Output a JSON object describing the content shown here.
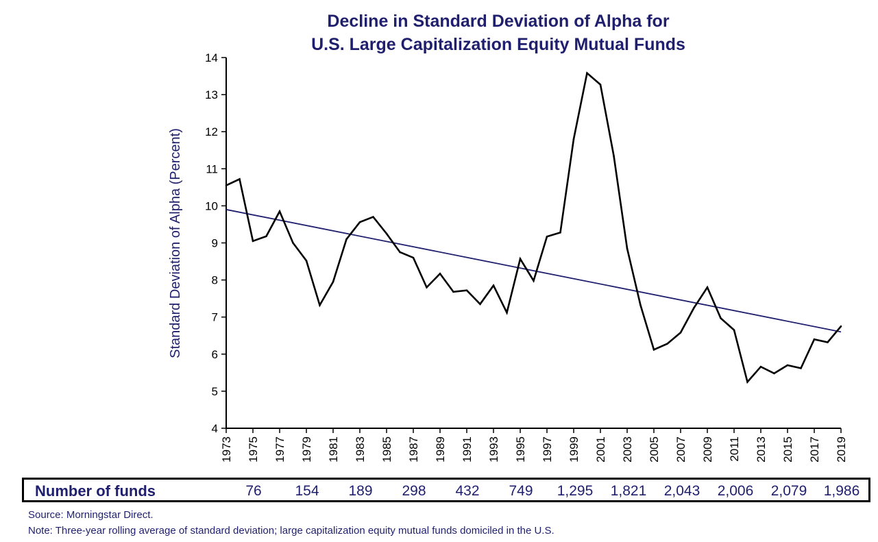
{
  "chart_data": {
    "type": "line",
    "title_lines": [
      "Decline in Standard Deviation of Alpha for",
      "U.S. Large Capitalization Equity Mutual Funds"
    ],
    "ylabel": "Standard Deviation of Alpha  (Percent)",
    "ylim": [
      4,
      14
    ],
    "yticks": [
      4,
      5,
      6,
      7,
      8,
      9,
      10,
      11,
      12,
      13,
      14
    ],
    "xlim": [
      1973,
      2019
    ],
    "xticks": [
      "1973",
      "1975",
      "1977",
      "1979",
      "1981",
      "1983",
      "1985",
      "1987",
      "1989",
      "1991",
      "1993",
      "1995",
      "1997",
      "1999",
      "2001",
      "2003",
      "2005",
      "2007",
      "2009",
      "2011",
      "2013",
      "2015",
      "2017",
      "2019"
    ],
    "series": [
      {
        "x": [
          1973,
          1974,
          1975,
          1976,
          1977,
          1978,
          1979,
          1980,
          1981,
          1982,
          1983,
          1984,
          1985,
          1986,
          1987,
          1988,
          1989,
          1990,
          1991,
          1992,
          1993,
          1994,
          1995,
          1996,
          1997,
          1998,
          1999,
          2000,
          2001,
          2002,
          2003,
          2004,
          2005,
          2006,
          2007,
          2008,
          2009,
          2010,
          2011,
          2012,
          2013,
          2014,
          2015,
          2016,
          2017,
          2018,
          2019
        ],
        "values": [
          10.55,
          10.72,
          9.05,
          9.18,
          9.85,
          9.0,
          8.52,
          7.32,
          7.95,
          9.1,
          9.56,
          9.7,
          9.25,
          8.75,
          8.6,
          7.8,
          8.17,
          7.68,
          7.72,
          7.35,
          7.85,
          7.12,
          8.57,
          7.98,
          9.17,
          9.28,
          11.8,
          13.58,
          13.27,
          11.35,
          8.85,
          7.32,
          6.12,
          6.28,
          6.58,
          7.25,
          7.8,
          6.97,
          6.65,
          5.25,
          5.66,
          5.48,
          5.7,
          5.62,
          6.4,
          6.32,
          6.75
        ],
        "color": "#000000"
      }
    ],
    "trendline": {
      "x": [
        1973,
        2019
      ],
      "values": [
        9.9,
        6.6
      ],
      "color": "#1f1f6e"
    },
    "grid": false,
    "legend": "none"
  },
  "funds": {
    "label": "Number of funds",
    "values": [
      "76",
      "154",
      "189",
      "298",
      "432",
      "749",
      "1,295",
      "1,821",
      "2,043",
      "2,006",
      "2,079",
      "1,986"
    ]
  },
  "source": "Source: Morningstar Direct.",
  "note": "Note: Three-year rolling average of standard deviation; large capitalization equity mutual funds domiciled in the U.S."
}
